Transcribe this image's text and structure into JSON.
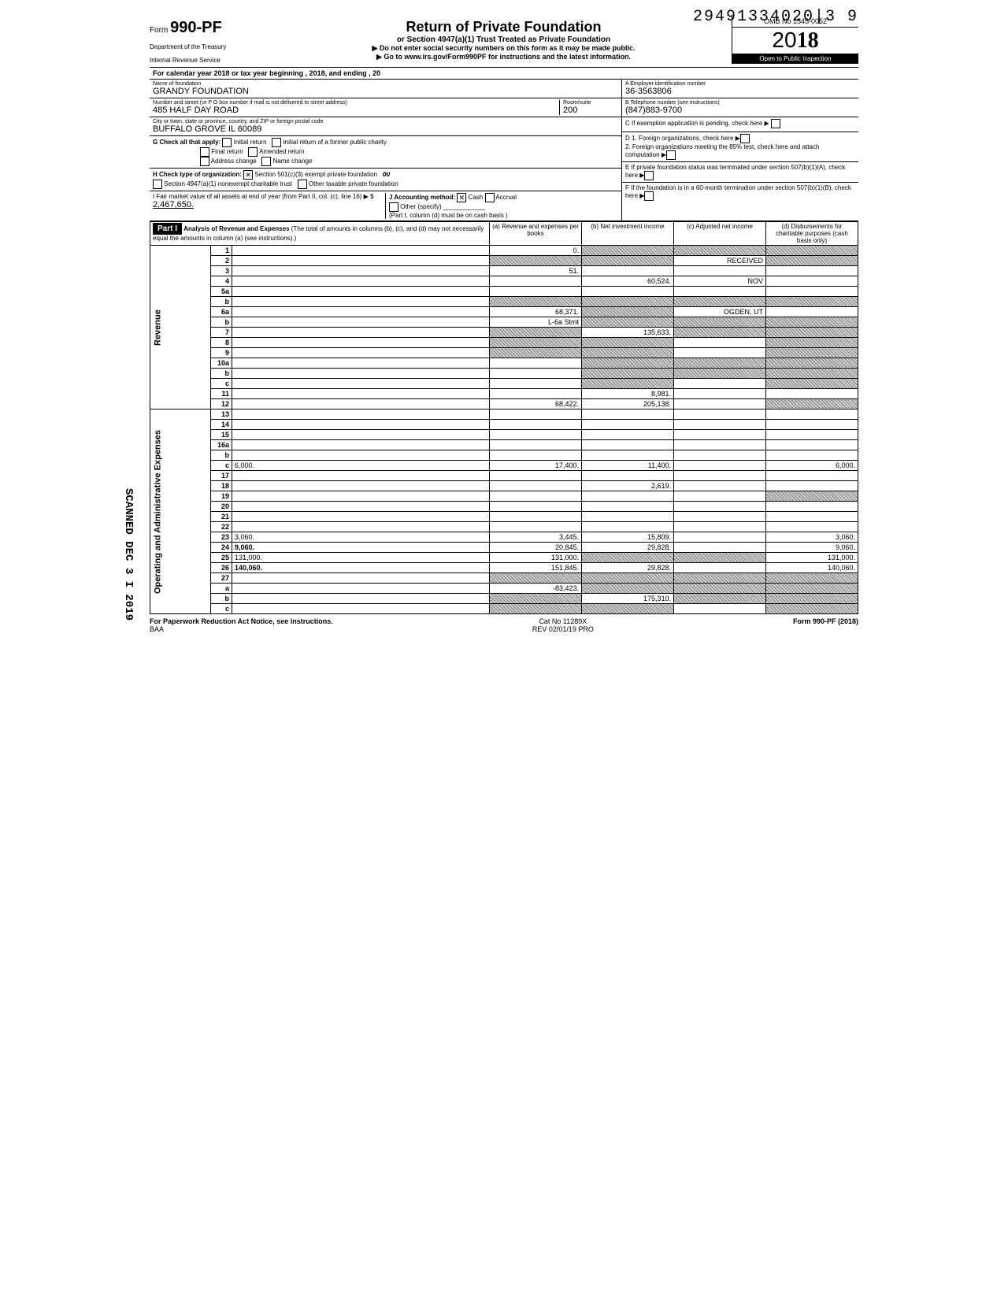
{
  "doc_id": "29491334020|3 9",
  "form": {
    "number_prefix": "Form",
    "number": "990-PF",
    "dept1": "Department of the Treasury",
    "dept2": "Internal Revenue Service",
    "title": "Return of Private Foundation",
    "subtitle": "or Section 4947(a)(1) Trust Treated as Private Foundation",
    "note1": "▶ Do not enter social security numbers on this form as it may be made public.",
    "note2": "▶ Go to www.irs.gov/Form990PF for instructions and the latest information.",
    "omb": "OMB No 1545-0052",
    "year_outline": "20",
    "year_bold": "18",
    "inspection": "Open to Public Inspection"
  },
  "cal_year": "For calendar year 2018 or tax year beginning                                    , 2018, and ending                                    , 20",
  "foundation": {
    "name_label": "Name of foundation",
    "name": "GRANDY FOUNDATION",
    "addr_label": "Number and street (or P O box number if mail is not delivered to street address)",
    "street": "485 HALF DAY ROAD",
    "room_label": "Room/suite",
    "room": "200",
    "city_label": "City or town, state or province, country, and ZIP or foreign postal code",
    "city": "BUFFALO GROVE IL  60089"
  },
  "right_box": {
    "A_label": "A  Employer identification number",
    "A": "36-3563806",
    "B_label": "B  Telephone number (see instructions)",
    "B": "(847)883-9700",
    "C": "C  If exemption application is pending, check here ▶",
    "D1": "D  1. Foreign organizations, check here",
    "D2": "2. Foreign organizations meeting the 85% test, check here and attach computation",
    "E": "E  If private foundation status was terminated under section 507(b)(1)(A), check here",
    "F": "F  If the foundation is in a 60-month termination under section 507(b)(1)(B), check here"
  },
  "G": {
    "label": "G  Check all that apply:",
    "opts": [
      "Initial return",
      "Initial return of a former public charity",
      "Final return",
      "Amended return",
      "Address change",
      "Name change"
    ]
  },
  "H": {
    "label": "H  Check type of organization:",
    "opt1": "Section 501(c)(3) exempt private foundation",
    "opt2": "Section 4947(a)(1) nonexempt charitable trust",
    "opt3": "Other taxable private foundation",
    "ou": "OU"
  },
  "I": {
    "label": "I   Fair market value of all assets at end of year (from Part II, col. (c), line 16) ▶ $",
    "value": "2,467,650."
  },
  "J": {
    "label": "J   Accounting method:",
    "cash": "Cash",
    "accrual": "Accrual",
    "other": "Other (specify)",
    "note": "(Part I, column (d) must be on cash basis )"
  },
  "part1": {
    "header": "Part I",
    "title": "Analysis of Revenue and Expenses",
    "subtitle": "(The total of amounts in columns (b), (c), and (d) may not necessarily equal the amounts in column (a) (see instructions).)",
    "cols": [
      "(a) Revenue and expenses per books",
      "(b) Net investment income",
      "(c) Adjusted net income",
      "(d) Disbursements for charitable purposes (cash basis only)"
    ]
  },
  "revenue_label": "Revenue",
  "expense_label": "Operating and Administrative Expenses",
  "rows": [
    {
      "n": "1",
      "d": "",
      "a": "0.",
      "b": "",
      "c": "",
      "shade_b": true,
      "shade_c": true,
      "shade_d": true
    },
    {
      "n": "2",
      "d": "",
      "a": "",
      "b": "",
      "c": "RECEIVED",
      "shade_a": true,
      "shade_b": true,
      "shade_d": true
    },
    {
      "n": "3",
      "d": "",
      "a": "51.",
      "b": "",
      "c": ""
    },
    {
      "n": "4",
      "d": "",
      "a": "",
      "b": "60,524.",
      "c": "NOV"
    },
    {
      "n": "5a",
      "d": "",
      "a": "",
      "b": "",
      "c": ""
    },
    {
      "n": "b",
      "d": "",
      "a": "",
      "b": "",
      "c": "",
      "shade_a": true,
      "shade_b": true,
      "shade_c": true,
      "shade_d": true
    },
    {
      "n": "6a",
      "d": "",
      "a": "68,371.",
      "b": "",
      "c": "OGDEN, UT",
      "shade_b": true
    },
    {
      "n": "b",
      "d": "",
      "a": "L-6a Stmt",
      "b": "",
      "c": "",
      "shade_b": true,
      "shade_c": true,
      "shade_d": true
    },
    {
      "n": "7",
      "d": "",
      "a": "",
      "b": "135,633.",
      "c": "",
      "shade_a": true,
      "shade_c": true,
      "shade_d": true
    },
    {
      "n": "8",
      "d": "",
      "a": "",
      "b": "",
      "c": "",
      "shade_a": true,
      "shade_b": true,
      "shade_d": true
    },
    {
      "n": "9",
      "d": "",
      "a": "",
      "b": "",
      "c": "",
      "shade_a": true,
      "shade_b": true,
      "shade_d": true
    },
    {
      "n": "10a",
      "d": "",
      "a": "",
      "b": "",
      "c": "",
      "shade_b": true,
      "shade_c": true,
      "shade_d": true
    },
    {
      "n": "b",
      "d": "",
      "a": "",
      "b": "",
      "c": "",
      "shade_b": true,
      "shade_c": true,
      "shade_d": true
    },
    {
      "n": "c",
      "d": "",
      "a": "",
      "b": "",
      "c": "",
      "shade_b": true,
      "shade_d": true
    },
    {
      "n": "11",
      "d": "",
      "a": "",
      "b": "8,981.",
      "c": ""
    },
    {
      "n": "12",
      "d": "",
      "a": "68,422.",
      "b": "205,138.",
      "c": "",
      "bold": true,
      "shade_d": true
    },
    {
      "n": "13",
      "d": "",
      "a": "",
      "b": "",
      "c": ""
    },
    {
      "n": "14",
      "d": "",
      "a": "",
      "b": "",
      "c": ""
    },
    {
      "n": "15",
      "d": "",
      "a": "",
      "b": "",
      "c": ""
    },
    {
      "n": "16a",
      "d": "",
      "a": "",
      "b": "",
      "c": ""
    },
    {
      "n": "b",
      "d": "",
      "a": "",
      "b": "",
      "c": ""
    },
    {
      "n": "c",
      "d": "6,000.",
      "a": "17,400.",
      "b": "11,400.",
      "c": ""
    },
    {
      "n": "17",
      "d": "",
      "a": "",
      "b": "",
      "c": ""
    },
    {
      "n": "18",
      "d": "",
      "a": "",
      "b": "2,619.",
      "c": ""
    },
    {
      "n": "19",
      "d": "",
      "a": "",
      "b": "",
      "c": "",
      "shade_d": true
    },
    {
      "n": "20",
      "d": "",
      "a": "",
      "b": "",
      "c": ""
    },
    {
      "n": "21",
      "d": "",
      "a": "",
      "b": "",
      "c": ""
    },
    {
      "n": "22",
      "d": "",
      "a": "",
      "b": "",
      "c": ""
    },
    {
      "n": "23",
      "d": "3,060.",
      "a": "3,445.",
      "b": "15,809.",
      "c": ""
    },
    {
      "n": "24",
      "d": "9,060.",
      "a": "20,845.",
      "b": "29,828.",
      "c": "",
      "bold": true
    },
    {
      "n": "25",
      "d": "131,000.",
      "a": "131,000.",
      "b": "",
      "c": "",
      "shade_b": true,
      "shade_c": true
    },
    {
      "n": "26",
      "d": "140,060.",
      "a": "151,845.",
      "b": "29,828.",
      "c": "",
      "bold": true
    },
    {
      "n": "27",
      "d": "",
      "a": "",
      "b": "",
      "c": "",
      "shade_a": true,
      "shade_b": true,
      "shade_c": true,
      "shade_d": true
    },
    {
      "n": "a",
      "d": "",
      "a": "-83,423.",
      "b": "",
      "c": "",
      "bold": true,
      "shade_b": true,
      "shade_c": true,
      "shade_d": true
    },
    {
      "n": "b",
      "d": null,
      "a": "",
      "b": "175,310.",
      "c": "",
      "bold": true,
      "shade_a": true,
      "shade_c": true,
      "shade_d": true
    },
    {
      "n": "c",
      "d": null,
      "a": "",
      "b": "",
      "c": "",
      "bold": true,
      "shade_a": true,
      "shade_b": true,
      "shade_d": true
    }
  ],
  "footer": {
    "left": "For Paperwork Reduction Act Notice, see instructions.",
    "baa": "BAA",
    "center": "Cat No 11289X",
    "rev": "REV 02/01/19 PRO",
    "right": "Form 990-PF (2018)"
  },
  "scanned": "SCANNED DEC 3 I 2019"
}
